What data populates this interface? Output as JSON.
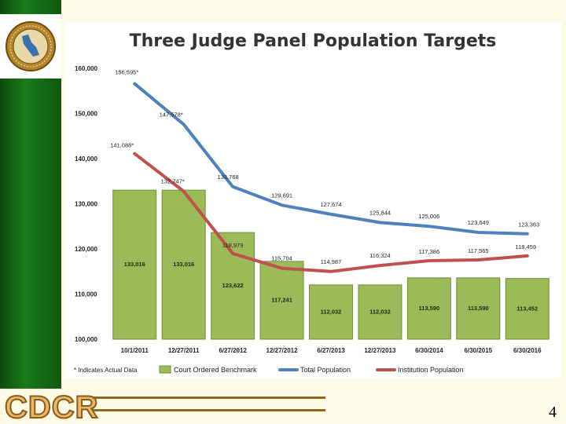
{
  "footer": {
    "logo_text": "CDCR",
    "page_number": "4"
  },
  "colors": {
    "bar": "#9bbb59",
    "bar_edge": "#6f8f35",
    "total": "#4f81bd",
    "institution": "#c0504d",
    "accent_green": "#1a7a1a"
  },
  "icons": {
    "seal": "cdcr-seal-icon"
  },
  "chart_data": {
    "type": "bar",
    "title": "Three Judge Panel Population Targets",
    "ylim": [
      100000,
      160000
    ],
    "yticks": [
      "100,000",
      "110,000",
      "120,000",
      "130,000",
      "140,000",
      "150,000",
      "160,000"
    ],
    "ytick_values": [
      100000,
      110000,
      120000,
      130000,
      140000,
      150000,
      160000
    ],
    "categories": [
      "10/1/2011",
      "12/27/2011",
      "6/27/2012",
      "12/27/2012",
      "6/27/2013",
      "12/27/2013",
      "6/30/2014",
      "6/30/2015",
      "6/30/2016"
    ],
    "series": [
      {
        "name": "Court Ordered Benchmark",
        "kind": "bar",
        "values": [
          133016,
          133016,
          123622,
          117241,
          112032,
          112032,
          113590,
          113590,
          113452
        ],
        "labels": [
          "133,016",
          "133,016",
          "123,622",
          "117,241",
          "112,032",
          "112,032",
          "113,590",
          "113,590",
          "113,452"
        ]
      },
      {
        "name": "Total Population",
        "kind": "line",
        "values": [
          156595,
          147578,
          133768,
          129691,
          127674,
          125844,
          125006,
          123649,
          123363
        ],
        "labels": [
          "156,595*",
          "147,578*",
          "133,768",
          "129,691",
          "127,674",
          "125,844",
          "125,006",
          "123,649",
          "123,363"
        ]
      },
      {
        "name": "Institution Population",
        "kind": "line",
        "values": [
          141088,
          132747,
          118979,
          115704,
          114987,
          116324,
          117386,
          117565,
          118459
        ],
        "labels": [
          "141,088*",
          "132,747*",
          "118,979",
          "115,704",
          "114,987",
          "116,324",
          "117,386",
          "117,565",
          "118,459"
        ]
      }
    ],
    "legend_position": "bottom",
    "footnote": "* Indicates Actual Data",
    "grid": false
  }
}
